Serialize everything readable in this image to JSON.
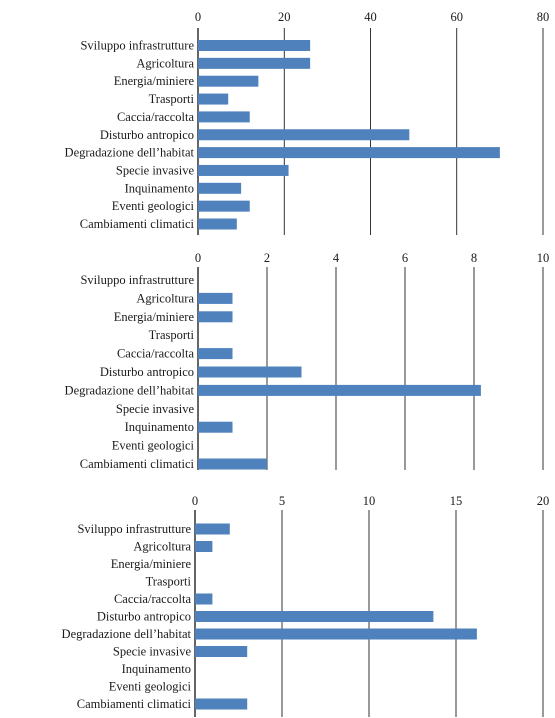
{
  "colors": {
    "bar": "#4f81bd",
    "grid": "#000000",
    "text": "#1a1a1a"
  },
  "chart_data": [
    {
      "type": "bar",
      "orientation": "horizontal",
      "categories": [
        "Sviluppo infrastrutture",
        "Agricoltura",
        "Energia/miniere",
        "Trasporti",
        "Caccia/raccolta",
        "Disturbo antropico",
        "Degradazione dell’habitat",
        "Specie invasive",
        "Inquinamento",
        "Eventi geologici",
        "Cambiamenti climatici"
      ],
      "values": [
        26,
        26,
        14,
        7,
        12,
        49,
        70,
        21,
        10,
        12,
        9
      ],
      "xlim": [
        0,
        80
      ],
      "ticks": [
        0,
        20,
        40,
        60,
        80
      ],
      "tick_labels": [
        "0",
        "20",
        "40",
        "60",
        "80"
      ],
      "grid": "vertical"
    },
    {
      "type": "bar",
      "orientation": "horizontal",
      "categories": [
        "Sviluppo infrastrutture",
        "Agricoltura",
        "Energia/miniere",
        "Trasporti",
        "Caccia/raccolta",
        "Disturbo antropico",
        "Degradazione dell’habitat",
        "Specie invasive",
        "Inquinamento",
        "Eventi geologici",
        "Cambiamenti climatici"
      ],
      "values": [
        0,
        1,
        1,
        0,
        1,
        3,
        8.2,
        0,
        1,
        0,
        2
      ],
      "xlim": [
        0,
        10
      ],
      "ticks": [
        0,
        2,
        4,
        6,
        8,
        10
      ],
      "tick_labels": [
        "0",
        "2",
        "4",
        "6",
        "8",
        "10"
      ],
      "grid": "vertical"
    },
    {
      "type": "bar",
      "orientation": "horizontal",
      "categories": [
        "Sviluppo infrastrutture",
        "Agricoltura",
        "Energia/miniere",
        "Trasporti",
        "Caccia/raccolta",
        "Disturbo antropico",
        "Degradazione dell’habitat",
        "Specie invasive",
        "Inquinamento",
        "Eventi geologici",
        "Cambiamenti climatici"
      ],
      "values": [
        2,
        1,
        0,
        0,
        1,
        13.7,
        16.2,
        3,
        0,
        0,
        3
      ],
      "xlim": [
        0,
        20
      ],
      "ticks": [
        0,
        5,
        10,
        15,
        20
      ],
      "tick_labels": [
        "0",
        "5",
        "10",
        "15",
        "20"
      ],
      "grid": "vertical"
    }
  ]
}
